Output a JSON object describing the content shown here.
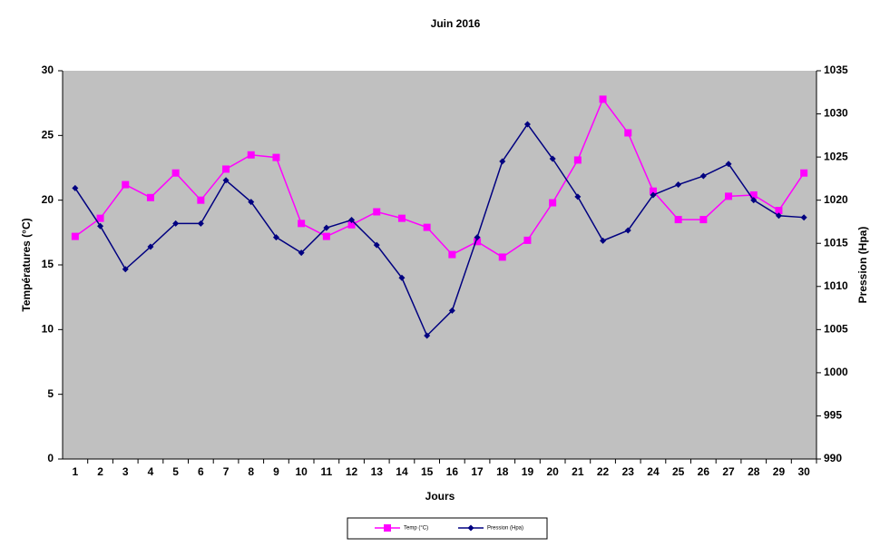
{
  "chart_data": {
    "type": "line",
    "title": "Juin 2016",
    "x_label": "Jours",
    "y_label": "Températures (°C)",
    "y2_label": "Pression (Hpa)",
    "categories": [
      "1",
      "2",
      "3",
      "4",
      "5",
      "6",
      "7",
      "8",
      "9",
      "10",
      "11",
      "12",
      "13",
      "14",
      "15",
      "16",
      "17",
      "18",
      "19",
      "20",
      "21",
      "22",
      "23",
      "24",
      "25",
      "26",
      "27",
      "28",
      "29",
      "30"
    ],
    "series": [
      {
        "name": "Temp (°C)",
        "color": "#ff00ff",
        "marker": "square",
        "values": [
          17.2,
          18.6,
          21.2,
          20.2,
          22.1,
          20.0,
          22.4,
          23.5,
          23.3,
          18.2,
          17.2,
          18.1,
          19.1,
          18.6,
          17.9,
          15.8,
          16.8,
          15.6,
          16.9,
          19.8,
          23.1,
          27.8,
          25.2,
          20.7,
          18.5,
          18.5,
          20.3,
          20.4,
          19.2,
          22.1
        ]
      },
      {
        "name": "Pression (Hpa)",
        "color": "#000080",
        "marker": "diamond",
        "axis": "y2",
        "values": [
          1021.4,
          1017.0,
          1012.0,
          1014.6,
          1017.3,
          1017.3,
          1022.3,
          1019.8,
          1015.7,
          1013.9,
          1016.8,
          1017.7,
          1014.8,
          1011.0,
          1004.3,
          1007.2,
          1015.7,
          1024.5,
          1028.8,
          1024.8,
          1020.4,
          1015.3,
          1016.5,
          1020.6,
          1021.8,
          1022.8,
          1024.2,
          1020.0,
          1018.2,
          1018.0
        ]
      }
    ],
    "ylim": [
      0,
      30
    ],
    "yticks": [
      0,
      5,
      10,
      15,
      20,
      25,
      30
    ],
    "y2lim": [
      990,
      1035
    ],
    "y2ticks": [
      990,
      995,
      1000,
      1005,
      1010,
      1015,
      1020,
      1025,
      1030,
      1035
    ],
    "grid": false,
    "legend": "bottom",
    "plot_background": "#c0c0c0"
  }
}
